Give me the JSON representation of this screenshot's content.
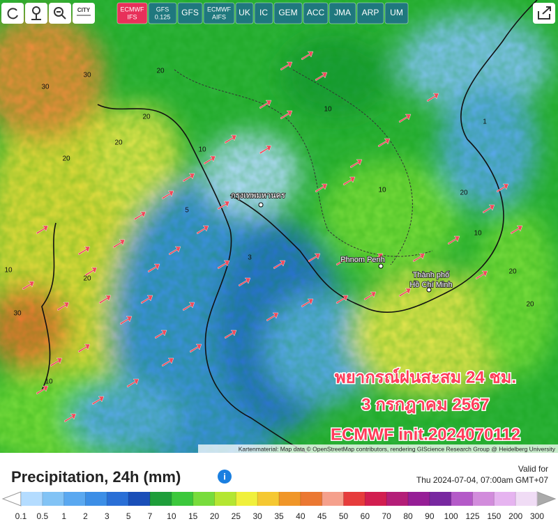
{
  "toolbar": {
    "icons": [
      "CITY"
    ],
    "models": [
      {
        "label": "ECMWF",
        "sub": "IFS",
        "active": true
      },
      {
        "label": "GFS",
        "sub": "0.125",
        "active": false
      },
      {
        "label": "GFS",
        "sub": null,
        "active": false
      },
      {
        "label": "ECMWF",
        "sub": "AIFS",
        "active": false
      },
      {
        "label": "UK",
        "sub": null,
        "active": false
      },
      {
        "label": "IC",
        "sub": null,
        "active": false
      },
      {
        "label": "GEM",
        "sub": null,
        "active": false
      },
      {
        "label": "ACC",
        "sub": null,
        "active": false
      },
      {
        "label": "JMA",
        "sub": null,
        "active": false
      },
      {
        "label": "ARP",
        "sub": null,
        "active": false
      },
      {
        "label": "UM",
        "sub": null,
        "active": false
      }
    ]
  },
  "map": {
    "contour_labels": [
      "30",
      "30",
      "20",
      "20",
      "20",
      "20",
      "10",
      "10",
      "10",
      "10",
      "20",
      "20",
      "20",
      "30",
      "10",
      "5",
      "3",
      "1",
      "20",
      "10"
    ],
    "places": [
      "กรุงเทพมหานคร",
      "Phnom Penh",
      "Thành phố",
      "Hồ Chí Minh"
    ],
    "attribution": "Kartenmaterial: Map data © OpenStreetMap contributors, rendering GIScience Research Group @ Heidelberg University"
  },
  "overlay": {
    "lines": [
      "พยากรณ์ฝนสะสม 24 ชม.",
      "3 กรกฎาคม 2567",
      "ECMWF init.2024070112"
    ]
  },
  "legend": {
    "title": "Precipitation, 24h (mm)",
    "valid_label": "Valid for",
    "valid_time": "Thu 2024-07-04, 07:00am GMT+07",
    "ticks": [
      "0.1",
      "0.5",
      "1",
      "2",
      "3",
      "5",
      "7",
      "10",
      "15",
      "20",
      "25",
      "30",
      "35",
      "40",
      "45",
      "50",
      "60",
      "70",
      "80",
      "90",
      "100",
      "125",
      "150",
      "200",
      "300"
    ],
    "colors": [
      "#b4dcff",
      "#82c3f5",
      "#5aa8f0",
      "#3c8ee6",
      "#2a6fd6",
      "#1a4fb8",
      "#1e9e3a",
      "#3cc83c",
      "#78dc3c",
      "#b4e632",
      "#f0f03c",
      "#f5c832",
      "#f09628",
      "#eb7832",
      "#f5a08c",
      "#e63c3c",
      "#d21e50",
      "#b41e78",
      "#961e96",
      "#7828a0",
      "#b45ac8",
      "#d28cdc",
      "#e6b4f0",
      "#f0dcf5"
    ]
  }
}
